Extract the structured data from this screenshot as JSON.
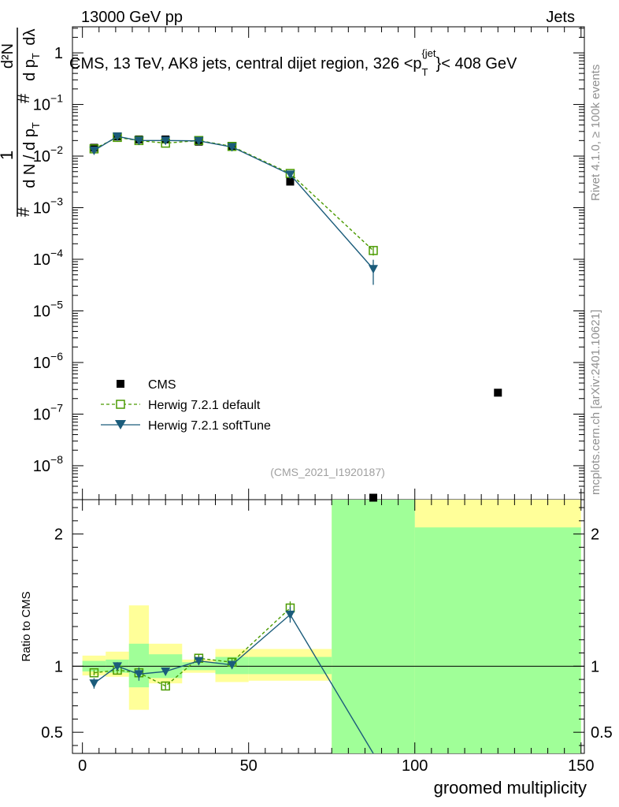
{
  "header": {
    "left": "13000 GeV pp",
    "right": "Jets"
  },
  "side": {
    "rivet": "Rivet 4.1.0, ≥ 100k events",
    "mcplots": "mcplots.cern.ch [arXiv:2401.10621]"
  },
  "chart_data": {
    "type": "scatter",
    "title": "CMS, 13 TeV, AK8 jets, central dijet region, 326 < p_T^{jet} < 408 GeV",
    "title_parts": {
      "main": "CMS, 13 TeV, AK8 jets, central dijet region, 326 <p",
      "sub": "T",
      "sup": "{jet",
      "tail": "}< 408 GeV"
    },
    "analysis_id": "(CMS_2021_I1920187)",
    "xlabel": "groomed multiplicity",
    "ylabel_parts": {
      "one": "1",
      "num": "#",
      "den": "d N / d p",
      "denSub": "T",
      "hash2": "#",
      "d2": "d",
      "pt2": "d p",
      "pt2Sub": "T",
      "dl": "dλ",
      "d2N": "d²N"
    },
    "ratio_ylabel": "Ratio to CMS",
    "xlim": [
      -3,
      151
    ],
    "ylim_log": [
      2.2e-09,
      3.2
    ],
    "ratio_ylim": [
      0.34,
      2.26
    ],
    "x_ticks": [
      "0",
      "50",
      "100",
      "150"
    ],
    "x_tick_values": [
      0,
      50,
      100,
      150
    ],
    "y_ticks": [
      {
        "value": 1,
        "label": "1",
        "base": "1",
        "exp": ""
      },
      {
        "value": 0.1,
        "label": "10^-1",
        "base": "10",
        "exp": "−1"
      },
      {
        "value": 0.01,
        "label": "10^-2",
        "base": "10",
        "exp": "−2"
      },
      {
        "value": 0.001,
        "label": "10^-3",
        "base": "10",
        "exp": "−3"
      },
      {
        "value": 0.0001,
        "label": "10^-4",
        "base": "10",
        "exp": "−4"
      },
      {
        "value": 1e-05,
        "label": "10^-5",
        "base": "10",
        "exp": "−5"
      },
      {
        "value": 1e-06,
        "label": "10^-6",
        "base": "10",
        "exp": "−6"
      },
      {
        "value": 1e-07,
        "label": "10^-7",
        "base": "10",
        "exp": "−7"
      },
      {
        "value": 1e-08,
        "label": "10^-8",
        "base": "10",
        "exp": "−8"
      }
    ],
    "ratio_ticks": [
      {
        "value": 2,
        "label": "2"
      },
      {
        "value": 1,
        "label": "1"
      },
      {
        "value": 0.5,
        "label": "0.5"
      }
    ],
    "bins": [
      {
        "x_low": 0,
        "x_high": 7
      },
      {
        "x_low": 7,
        "x_high": 14
      },
      {
        "x_low": 14,
        "x_high": 20
      },
      {
        "x_low": 20,
        "x_high": 30
      },
      {
        "x_low": 30,
        "x_high": 40
      },
      {
        "x_low": 40,
        "x_high": 50
      },
      {
        "x_low": 50,
        "x_high": 75
      },
      {
        "x_low": 75,
        "x_high": 100
      },
      {
        "x_low": 100,
        "x_high": 150
      }
    ],
    "cms": {
      "name": "CMS",
      "x": [
        3.5,
        10.5,
        17,
        25,
        35,
        45,
        62.5,
        87.5,
        125
      ],
      "y": [
        0.0145,
        0.024,
        0.021,
        0.021,
        0.019,
        0.015,
        0.0032,
        2.4e-09,
        2.6e-07
      ],
      "stat_band": [
        [
          0.96,
          1.04
        ],
        [
          0.95,
          1.05
        ],
        [
          0.84,
          1.17
        ],
        [
          0.91,
          1.09
        ],
        [
          0.97,
          1.03
        ],
        [
          0.94,
          1.07
        ],
        [
          0.94,
          1.07
        ],
        [
          0.34,
          2.26
        ],
        [
          0.34,
          2.05
        ]
      ],
      "total_band": [
        [
          0.93,
          1.08
        ],
        [
          0.92,
          1.11
        ],
        [
          0.67,
          1.46
        ],
        [
          0.87,
          1.17
        ],
        [
          0.95,
          1.05
        ],
        [
          0.88,
          1.13
        ],
        [
          0.89,
          1.13
        ],
        [
          0.34,
          2.26
        ],
        [
          0.34,
          2.26
        ]
      ]
    },
    "series": [
      {
        "name": "Herwig 7.2.1 default",
        "color": "#4a9a00",
        "marker": "open-square",
        "dashed": true,
        "x": [
          3.5,
          10.5,
          17,
          25,
          35,
          45,
          62.5,
          87.5
        ],
        "y": [
          0.0138,
          0.023,
          0.02,
          0.0178,
          0.02,
          0.0154,
          0.0046,
          0.000148
        ],
        "yerr": [
          0.0008,
          0.001,
          0.001,
          0.0009,
          0.001,
          0.0008,
          0.0004,
          3e-05
        ],
        "ratio": [
          0.95,
          0.97,
          0.95,
          0.85,
          1.06,
          1.03,
          1.44
        ],
        "ratio_err": [
          0.02,
          0.03,
          0.04,
          0.03,
          0.03,
          0.03,
          0.05
        ]
      },
      {
        "name": "Herwig 7.2.1 softTune",
        "color": "#1b5c7b",
        "marker": "filled-triangle-down",
        "dashed": false,
        "x": [
          3.5,
          10.5,
          17,
          25,
          35,
          45,
          62.5,
          87.5
        ],
        "y": [
          0.0128,
          0.024,
          0.02,
          0.02,
          0.0197,
          0.015,
          0.0044,
          6.5e-05
        ],
        "yerr": [
          0.0008,
          0.001,
          0.001,
          0.0009,
          0.001,
          0.0008,
          0.0004,
          3.3e-05
        ],
        "ratio": [
          0.87,
          1.0,
          0.94,
          0.96,
          1.04,
          1.01,
          1.39,
          0.1
        ],
        "ratio_err": [
          0.04,
          0.03,
          0.05,
          0.03,
          0.03,
          0.03,
          0.06,
          0.0
        ]
      }
    ],
    "colors": {
      "stat_band": "#a0ff98",
      "total_band": "#ffff99",
      "cms_marker": "#000000",
      "grid_line": "#000000"
    }
  }
}
